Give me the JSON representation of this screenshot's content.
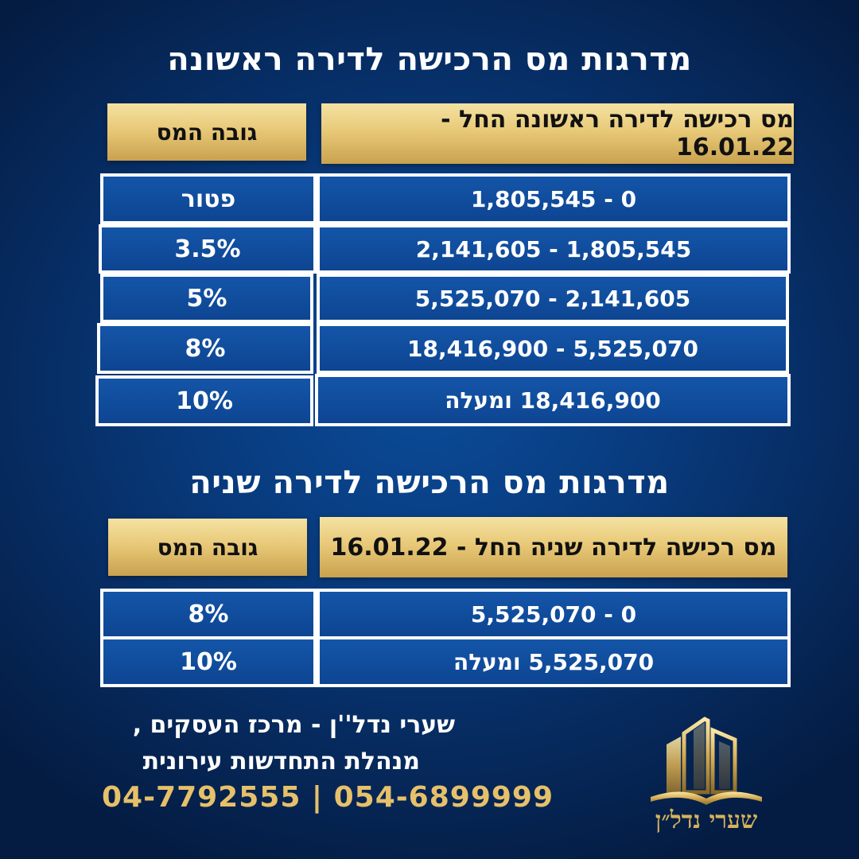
{
  "first_apartment": {
    "title": "מדרגות מס הרכישה לדירה ראשונה",
    "header_range": "מס רכישה לדירה ראשונה החל - 16.01.22",
    "header_rate": "גובה המס",
    "rows": [
      {
        "range": "0 - 1,805,545",
        "rate": "פטור"
      },
      {
        "range": "1,805,545 - 2,141,605",
        "rate": "3.5%"
      },
      {
        "range": "2,141,605 - 5,525,070",
        "rate": "5%"
      },
      {
        "range": "5,525,070 - 18,416,900",
        "rate": "8%"
      },
      {
        "range": "18,416,900 ומעלה",
        "rate": "10%"
      }
    ]
  },
  "second_apartment": {
    "title": "מדרגות מס הרכישה לדירה שניה",
    "header_range": "מס רכישה לדירה שניה החל - 16.01.22",
    "header_rate": "גובה המס",
    "rows": [
      {
        "range": "0 - 5,525,070",
        "rate": "8%"
      },
      {
        "range": "5,525,070 ומעלה",
        "rate": "10%"
      }
    ]
  },
  "footer": {
    "line1": "שערי נדל''ן - מרכז העסקים ,",
    "line2": "מנהלת התחדשות עירונית",
    "phones": "04-7792555 | 054-6899999"
  },
  "logo": {
    "text": "שערי נדל״ן",
    "icon": "building-logo-icon"
  },
  "colors": {
    "background": "#083a7c",
    "gold": "#e8c978",
    "cell_blue": "#1455a8",
    "phone_gold": "#e6c06a"
  }
}
